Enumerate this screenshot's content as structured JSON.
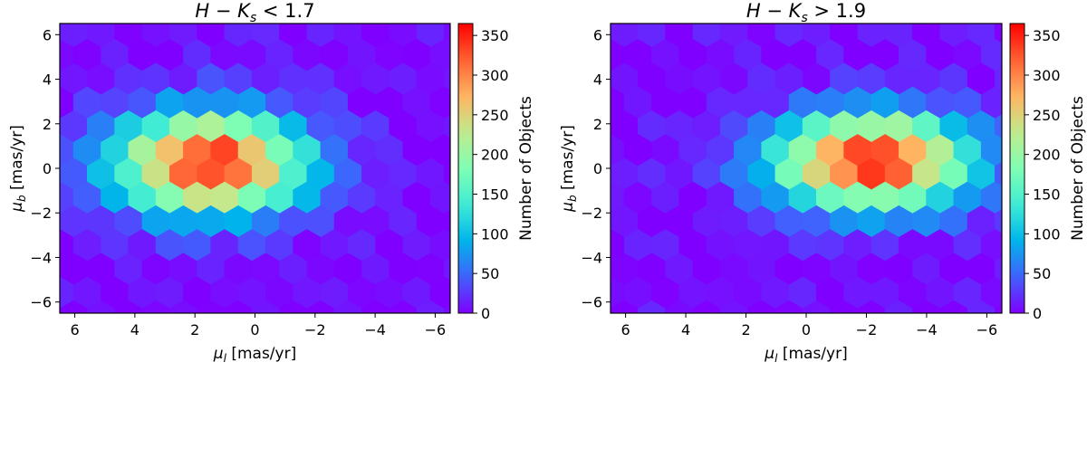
{
  "chart_data": [
    {
      "type": "hexbin",
      "title": "H − K_s < 1.7",
      "title_parts": [
        "H",
        " − ",
        "K",
        "s",
        " < 1.7"
      ],
      "xlabel": "μ_l [mas/yr]",
      "xlabel_parts": [
        "μ",
        "l",
        " [mas/yr]"
      ],
      "ylabel": "μ_b [mas/yr]",
      "ylabel_parts": [
        "μ",
        "b",
        " [mas/yr]"
      ],
      "xlim": [
        6.5,
        -6.5
      ],
      "ylim": [
        -6.5,
        6.5
      ],
      "xticks": [
        6,
        4,
        2,
        0,
        -2,
        -4,
        -6
      ],
      "yticks": [
        6,
        4,
        2,
        0,
        -2,
        -4,
        -6
      ],
      "xtick_labels": [
        "6",
        "4",
        "2",
        "0",
        "−2",
        "−4",
        "−6"
      ],
      "ytick_labels": [
        "6",
        "4",
        "2",
        "0",
        "−2",
        "−4",
        "−6"
      ],
      "colorbar": {
        "label": "Number of Objects",
        "min": 0,
        "max": 365,
        "ticks": [
          0,
          50,
          100,
          150,
          200,
          250,
          300,
          350
        ],
        "tick_labels": [
          "0",
          "50",
          "100",
          "150",
          "200",
          "250",
          "300",
          "350"
        ],
        "colormap": "rainbow"
      },
      "peak": {
        "x": 1.5,
        "y": 0.2,
        "value": 360
      },
      "spread": {
        "sigma_x": 2.2,
        "sigma_y": 1.6
      },
      "background_count": 12
    },
    {
      "type": "hexbin",
      "title": "H − K_s > 1.9",
      "title_parts": [
        "H",
        " − ",
        "K",
        "s",
        " > 1.9"
      ],
      "xlabel": "μ_l [mas/yr]",
      "xlabel_parts": [
        "μ",
        "l",
        " [mas/yr]"
      ],
      "ylabel": "μ_b [mas/yr]",
      "ylabel_parts": [
        "μ",
        "b",
        " [mas/yr]"
      ],
      "xlim": [
        6.5,
        -6.5
      ],
      "ylim": [
        -6.5,
        6.5
      ],
      "xticks": [
        6,
        4,
        2,
        0,
        -2,
        -4,
        -6
      ],
      "yticks": [
        6,
        4,
        2,
        0,
        -2,
        -4,
        -6
      ],
      "xtick_labels": [
        "6",
        "4",
        "2",
        "0",
        "−2",
        "−4",
        "−6"
      ],
      "ytick_labels": [
        "6",
        "4",
        "2",
        "0",
        "−2",
        "−4",
        "−6"
      ],
      "colorbar": {
        "label": "Number of Objects",
        "min": 0,
        "max": 365,
        "ticks": [
          0,
          50,
          100,
          150,
          200,
          250,
          300,
          350
        ],
        "tick_labels": [
          "0",
          "50",
          "100",
          "150",
          "200",
          "250",
          "300",
          "350"
        ],
        "colormap": "rainbow"
      },
      "peak": {
        "x": -2.2,
        "y": 0.3,
        "value": 360
      },
      "spread": {
        "sigma_x": 2.3,
        "sigma_y": 1.5
      },
      "background_count": 12
    }
  ]
}
